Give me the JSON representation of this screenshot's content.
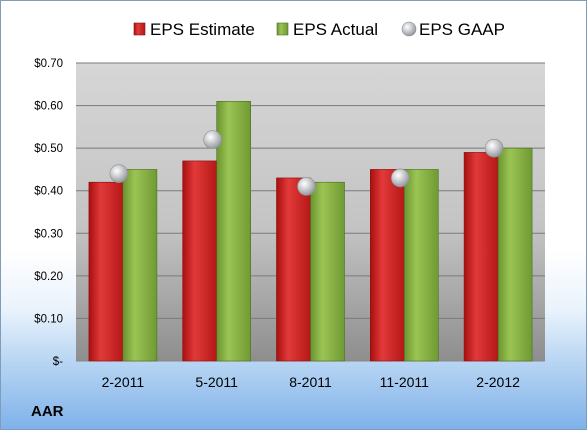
{
  "chart_data": {
    "type": "bar",
    "categories": [
      "2-2011",
      "5-2011",
      "8-2011",
      "11-2011",
      "2-2012"
    ],
    "series": [
      {
        "name": "EPS Estimate",
        "type": "bar",
        "color": "#c81e1e",
        "values": [
          0.42,
          0.47,
          0.43,
          0.45,
          0.49
        ]
      },
      {
        "name": "EPS Actual",
        "type": "bar",
        "color": "#7faa3c",
        "values": [
          0.45,
          0.61,
          0.42,
          0.45,
          0.5
        ]
      },
      {
        "name": "EPS GAAP",
        "type": "scatter",
        "color": "#b8bcc0",
        "values": [
          0.44,
          0.52,
          0.41,
          0.43,
          0.5
        ]
      }
    ],
    "y_ticks": [
      "$-",
      "$0.10",
      "$0.20",
      "$0.30",
      "$0.40",
      "$0.50",
      "$0.60",
      "$0.70"
    ],
    "ylim": [
      0,
      0.7
    ],
    "grid": true,
    "legend_position": "top"
  },
  "company": "AAR"
}
